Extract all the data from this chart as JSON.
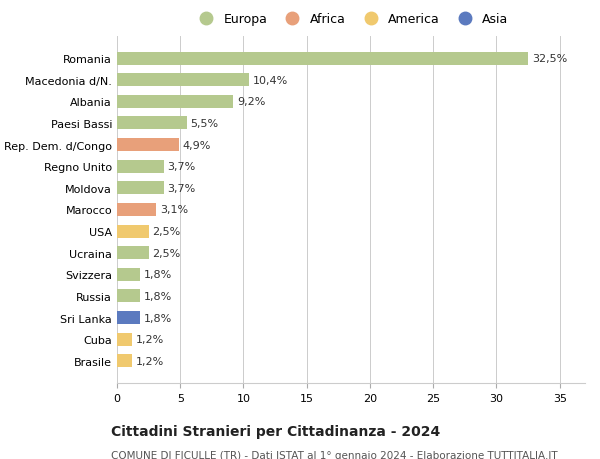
{
  "categories": [
    "Romania",
    "Macedonia d/N.",
    "Albania",
    "Paesi Bassi",
    "Rep. Dem. d/Congo",
    "Regno Unito",
    "Moldova",
    "Marocco",
    "USA",
    "Ucraina",
    "Svizzera",
    "Russia",
    "Sri Lanka",
    "Cuba",
    "Brasile"
  ],
  "values": [
    32.5,
    10.4,
    9.2,
    5.5,
    4.9,
    3.7,
    3.7,
    3.1,
    2.5,
    2.5,
    1.8,
    1.8,
    1.8,
    1.2,
    1.2
  ],
  "labels": [
    "32,5%",
    "10,4%",
    "9,2%",
    "5,5%",
    "4,9%",
    "3,7%",
    "3,7%",
    "3,1%",
    "2,5%",
    "2,5%",
    "1,8%",
    "1,8%",
    "1,8%",
    "1,2%",
    "1,2%"
  ],
  "continents": [
    "Europa",
    "Europa",
    "Europa",
    "Europa",
    "Africa",
    "Europa",
    "Europa",
    "Africa",
    "America",
    "Europa",
    "Europa",
    "Europa",
    "Asia",
    "America",
    "America"
  ],
  "continent_colors": {
    "Europa": "#b5c98e",
    "Africa": "#e8a07a",
    "America": "#f0c96e",
    "Asia": "#5b7abf"
  },
  "legend_items": [
    "Europa",
    "Africa",
    "America",
    "Asia"
  ],
  "legend_colors": [
    "#b5c98e",
    "#e8a07a",
    "#f0c96e",
    "#5b7abf"
  ],
  "xlim": [
    0,
    37
  ],
  "xticks": [
    0,
    5,
    10,
    15,
    20,
    25,
    30,
    35
  ],
  "title": "Cittadini Stranieri per Cittadinanza - 2024",
  "subtitle": "COMUNE DI FICULLE (TR) - Dati ISTAT al 1° gennaio 2024 - Elaborazione TUTTITALIA.IT",
  "background_color": "#ffffff",
  "bar_height": 0.6,
  "grid_color": "#cccccc",
  "label_fontsize": 8,
  "tick_fontsize": 8,
  "title_fontsize": 10,
  "subtitle_fontsize": 7.5,
  "legend_fontsize": 9
}
